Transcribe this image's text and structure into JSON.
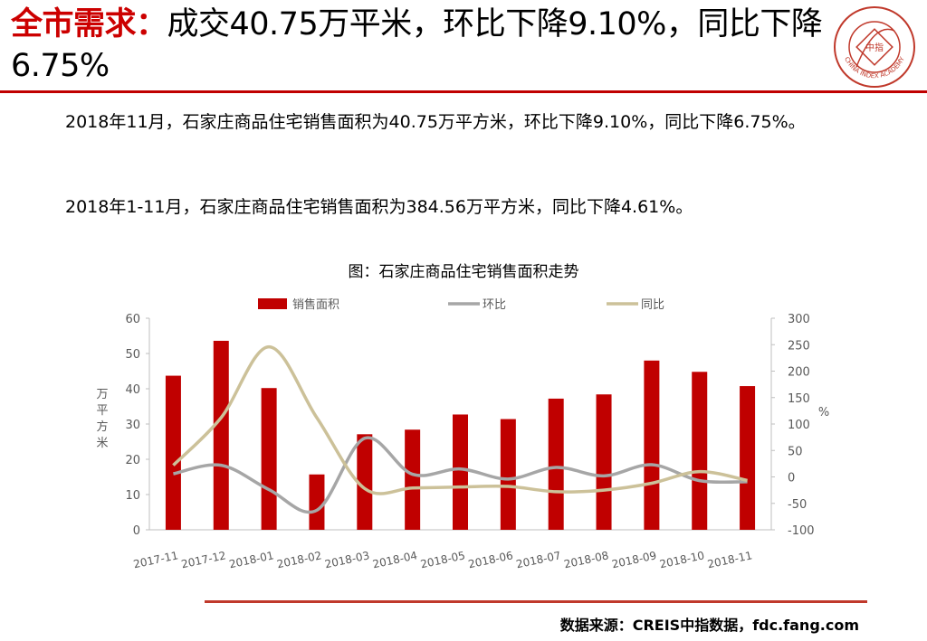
{
  "header": {
    "title_accent": "全市需求：",
    "title_rest": "成交40.75万平米，环比下降9.10%，同比下降6.75%",
    "logo_text": "CHINA INDEX ACADEMY",
    "logo_center": "中指",
    "colors": {
      "accent": "#cc0000",
      "rule": "#c00000"
    }
  },
  "body": {
    "para1": "2018年11月，石家庄商品住宅销售面积为40.75万平方米，环比下降9.10%，同比下降6.75%。",
    "para2": "2018年1-11月，石家庄商品住宅销售面积为384.56万平方米，同比下降4.61%。"
  },
  "chart_data": {
    "type": "bar",
    "title": "图：石家庄商品住宅销售面积走势",
    "categories": [
      "2017-11",
      "2017-12",
      "2018-01",
      "2018-02",
      "2018-03",
      "2018-04",
      "2018-05",
      "2018-06",
      "2018-07",
      "2018-08",
      "2018-09",
      "2018-10",
      "2018-11"
    ],
    "ylabel_left": "万平方米",
    "ylabel_right": "%",
    "ylim_left": [
      0,
      60
    ],
    "ylim_right": [
      -100,
      300
    ],
    "yticks_left": [
      "0",
      "10",
      "20",
      "30",
      "40",
      "50",
      "60"
    ],
    "yticks_right": [
      "-100",
      "-50",
      "0",
      "50",
      "100",
      "150",
      "200",
      "250",
      "300"
    ],
    "legend_position": "top",
    "grid": false,
    "series": [
      {
        "name": "销售面积",
        "kind": "bar",
        "axis": "left",
        "color": "#c00000",
        "values": [
          43.7,
          53.6,
          40.2,
          15.7,
          27.1,
          28.4,
          32.7,
          31.4,
          37.2,
          38.4,
          48.0,
          44.8,
          40.75
        ]
      },
      {
        "name": "环比",
        "kind": "line",
        "axis": "right",
        "color": "#a6a6a6",
        "values": [
          6,
          22,
          -24,
          -63,
          73,
          5,
          15,
          -4,
          18,
          2,
          23,
          -7,
          -9.1
        ]
      },
      {
        "name": "同比",
        "kind": "line",
        "axis": "right",
        "color": "#ccc199",
        "values": [
          22,
          112,
          246,
          112,
          -22,
          -21,
          -19,
          -18,
          -28,
          -25,
          -12,
          10,
          -6.75
        ]
      }
    ]
  },
  "footer": {
    "source": "数据来源：CREIS中指数据，fdc.fang.com"
  }
}
